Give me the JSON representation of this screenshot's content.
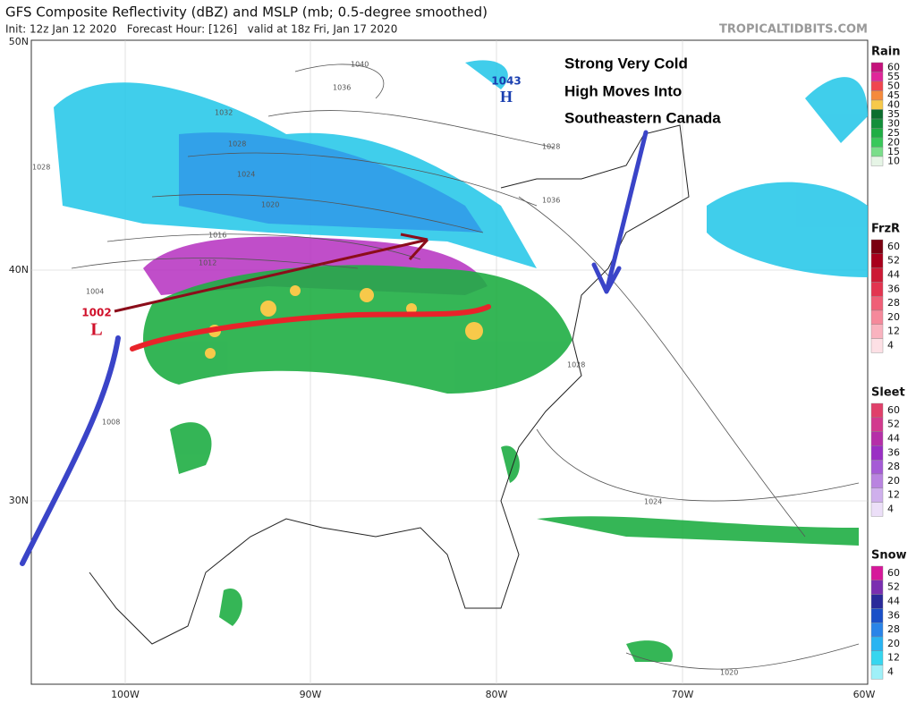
{
  "header": {
    "title": "GFS Composite Reflectivity (dBZ) and MSLP (mb; 0.5-degree smoothed)",
    "subtitle": "Init: 12z Jan 12 2020   Forecast Hour: [126]   valid at 18z Fri, Jan 17 2020",
    "site": "TROPICALTIDBITS.COM"
  },
  "map": {
    "lat_labels": [
      "50N",
      "40N",
      "30N"
    ],
    "lon_labels": [
      "100W",
      "90W",
      "80W",
      "70W",
      "60W"
    ],
    "isobar_labels": [
      "1040",
      "1036",
      "1032",
      "1028",
      "1024",
      "1020",
      "1016",
      "1012",
      "1004",
      "1008",
      "1028",
      "1040",
      "1036",
      "1028",
      "1024",
      "1020",
      "1028"
    ],
    "high": {
      "pressure": "1043",
      "letter": "H"
    },
    "low": {
      "pressure": "1002",
      "letter": "L"
    },
    "annotation": [
      "Strong Very Cold",
      "High Moves Into",
      "Southeastern Canada"
    ]
  },
  "legends": [
    {
      "title": "Rain",
      "levels": [
        60,
        55,
        50,
        45,
        40,
        35,
        30,
        25,
        20,
        15,
        10
      ],
      "colors": [
        "#c4127c",
        "#e0279a",
        "#f0464f",
        "#f58a3c",
        "#f7c94a",
        "#0b6e2e",
        "#128f3a",
        "#1fae44",
        "#39c85a",
        "#7ade8a",
        "#e6f5e6"
      ]
    },
    {
      "title": "FrzR",
      "levels": [
        60,
        52,
        44,
        36,
        28,
        20,
        12,
        4
      ],
      "colors": [
        "#7a0010",
        "#a8001c",
        "#cc1a35",
        "#e23550",
        "#ef5f77",
        "#f5899b",
        "#f9b3bf",
        "#fde0e5"
      ]
    },
    {
      "title": "Sleet",
      "levels": [
        60,
        52,
        44,
        36,
        28,
        20,
        12,
        4
      ],
      "colors": [
        "#e0406a",
        "#d23a8e",
        "#b52fa8",
        "#9a2fc4",
        "#a55bd6",
        "#b984e0",
        "#cfb0ec",
        "#ecdff8"
      ]
    },
    {
      "title": "Snow",
      "levels": [
        60,
        52,
        44,
        36,
        28,
        20,
        12,
        4
      ],
      "colors": [
        "#d6189a",
        "#7a2eb0",
        "#2a2a9a",
        "#1a4fc8",
        "#2a84e8",
        "#29b4f2",
        "#36d6ef",
        "#9ff0f8"
      ]
    }
  ]
}
